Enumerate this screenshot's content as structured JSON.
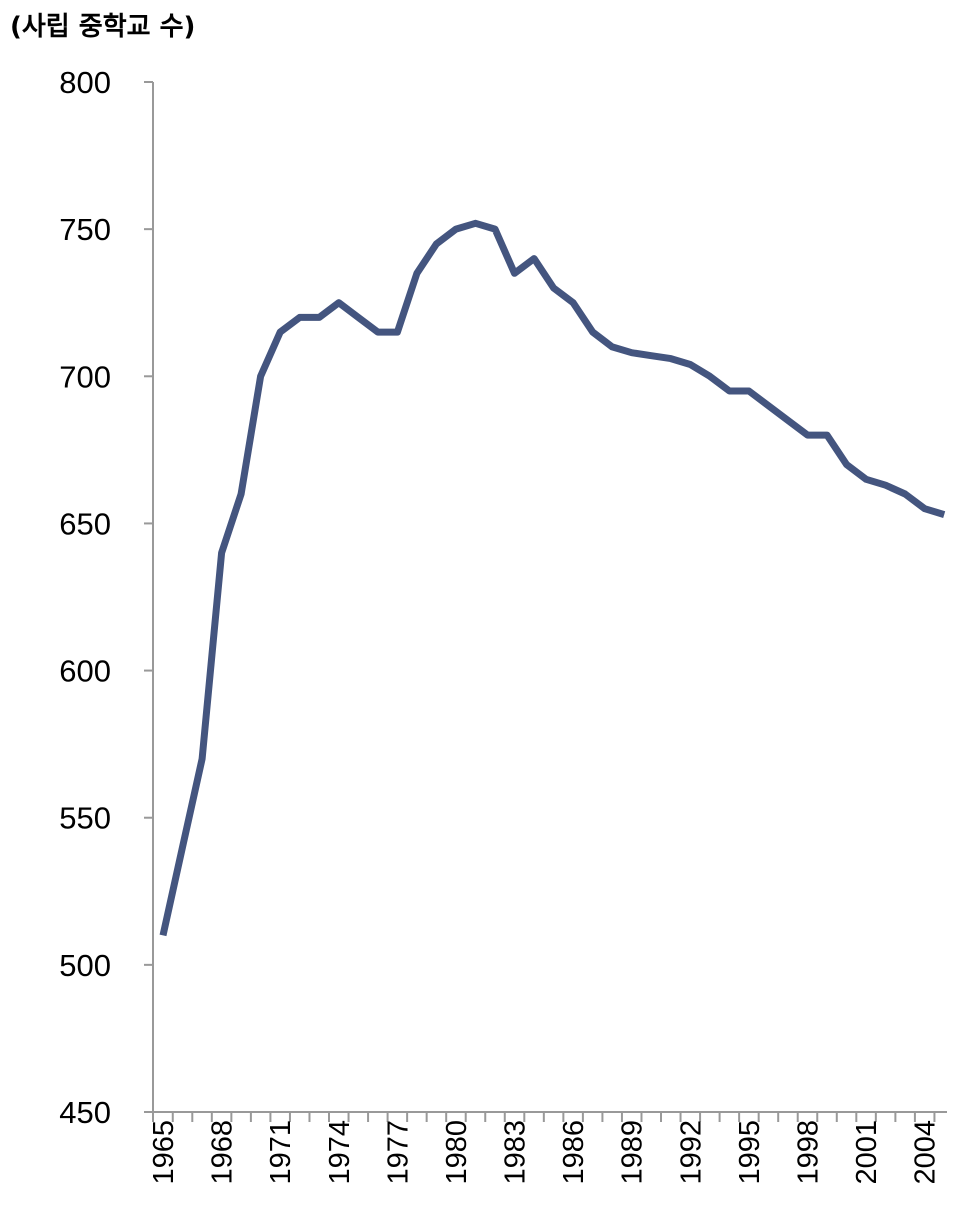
{
  "chart_data": {
    "type": "line",
    "ylabel": "(사립 중학교 수)",
    "ylim": [
      450,
      800
    ],
    "yticks": [
      450,
      500,
      550,
      600,
      650,
      700,
      750,
      800
    ],
    "xlim": [
      1965,
      2005
    ],
    "xtick_labels": [
      "1965",
      "1968",
      "1971",
      "1974",
      "1977",
      "1980",
      "1983",
      "1986",
      "1989",
      "1992",
      "1995",
      "1998",
      "2001",
      "2004"
    ],
    "grid": false,
    "colors": {
      "line": "#44557f",
      "axis": "#999999"
    },
    "series": [
      {
        "x": [
          1965,
          1966,
          1967,
          1968,
          1969,
          1970,
          1971,
          1972,
          1973,
          1974,
          1975,
          1976,
          1977,
          1978,
          1979,
          1980,
          1981,
          1982,
          1983,
          1984,
          1985,
          1986,
          1987,
          1988,
          1989,
          1990,
          1991,
          1992,
          1993,
          1994,
          1995,
          1996,
          1997,
          1998,
          1999,
          2000,
          2001,
          2002,
          2003,
          2004,
          2005
        ],
        "values": [
          510,
          540,
          570,
          640,
          660,
          700,
          715,
          720,
          720,
          725,
          720,
          715,
          715,
          735,
          745,
          750,
          752,
          750,
          735,
          740,
          730,
          725,
          715,
          710,
          708,
          707,
          706,
          704,
          700,
          695,
          695,
          690,
          685,
          680,
          680,
          670,
          665,
          663,
          660,
          655,
          653
        ]
      }
    ]
  }
}
